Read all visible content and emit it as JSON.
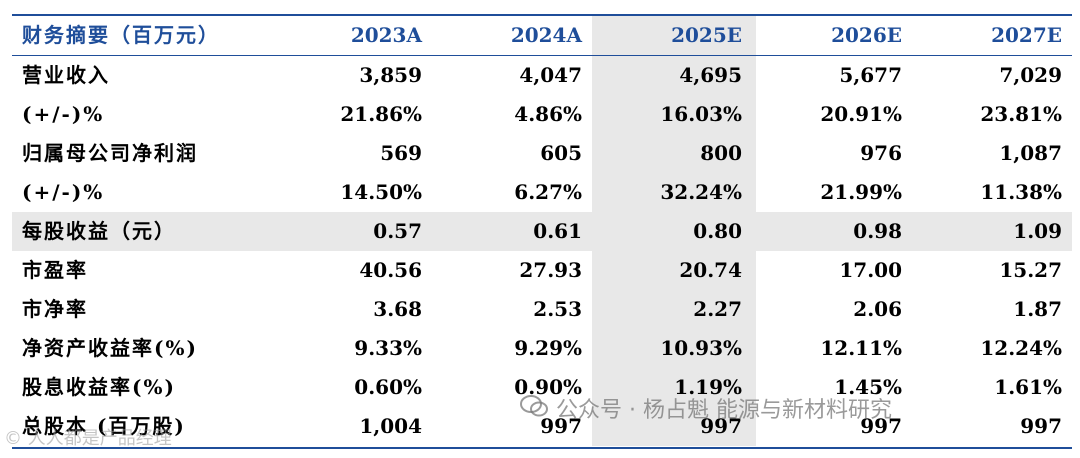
{
  "header": {
    "label": "财务摘要（百万元）",
    "years": [
      "2023A",
      "2024A",
      "2025E",
      "2026E",
      "2027E"
    ]
  },
  "rows": [
    {
      "label": "营业收入",
      "values": [
        "3,859",
        "4,047",
        "4,695",
        "5,677",
        "7,029"
      ]
    },
    {
      "label": "(+/-)%",
      "values": [
        "21.86%",
        "4.86%",
        "16.03%",
        "20.91%",
        "23.81%"
      ]
    },
    {
      "label": "归属母公司净利润",
      "values": [
        "569",
        "605",
        "800",
        "976",
        "1,087"
      ]
    },
    {
      "label": "(+/-)%",
      "values": [
        "14.50%",
        "6.27%",
        "32.24%",
        "21.99%",
        "11.38%"
      ]
    },
    {
      "label": "每股收益（元）",
      "values": [
        "0.57",
        "0.61",
        "0.80",
        "0.98",
        "1.09"
      ],
      "highlight": true
    },
    {
      "label": "市盈率",
      "values": [
        "40.56",
        "27.93",
        "20.74",
        "17.00",
        "15.27"
      ]
    },
    {
      "label": "市净率",
      "values": [
        "3.68",
        "2.53",
        "2.27",
        "2.06",
        "1.87"
      ]
    },
    {
      "label": "净资产收益率(%)",
      "values": [
        "9.33%",
        "9.29%",
        "10.93%",
        "12.11%",
        "12.24%"
      ]
    },
    {
      "label": "股息收益率(%)",
      "values": [
        "0.60%",
        "0.90%",
        "1.19%",
        "1.45%",
        "1.61%"
      ]
    },
    {
      "label": "总股本 (百万股)",
      "values": [
        "1,004",
        "997",
        "997",
        "997",
        "997"
      ]
    }
  ],
  "watermark": {
    "text": "公众号 · 杨占魁 能源与新材料研究",
    "left_text": "© 人人都是产品经理"
  },
  "colors": {
    "header_text": "#1f4e9a",
    "rule": "#1f4e9a",
    "highlight": "#e8e8e8"
  }
}
